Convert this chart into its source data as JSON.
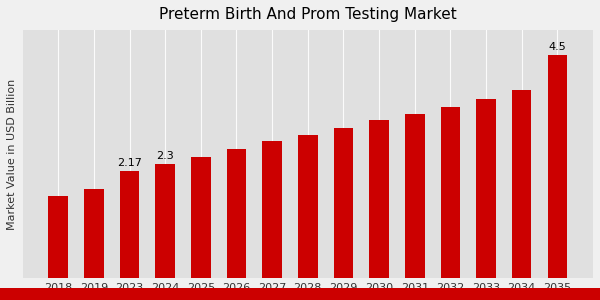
{
  "title": "Preterm Birth And Prom Testing Market",
  "ylabel": "Market Value in USD Billion",
  "categories": [
    "2018",
    "2019",
    "2023",
    "2024",
    "2025",
    "2026",
    "2027",
    "2028",
    "2029",
    "2030",
    "2031",
    "2032",
    "2033",
    "2034",
    "2035"
  ],
  "values": [
    1.65,
    1.8,
    2.17,
    2.3,
    2.44,
    2.6,
    2.76,
    2.88,
    3.02,
    3.18,
    3.3,
    3.45,
    3.62,
    3.8,
    4.5
  ],
  "bar_color": "#cc0000",
  "annotated_bars": {
    "2023": "2.17",
    "2024": "2.3",
    "2035": "4.5"
  },
  "background_top": "#f0f0f0",
  "background_bottom": "#d0d0d0",
  "plot_bg_color": "#e8e8e8",
  "title_fontsize": 11,
  "label_fontsize": 8,
  "annot_fontsize": 8,
  "ylim": [
    0,
    5.0
  ],
  "grid_color": "#c8c8c8",
  "bottom_bar_color": "#cc0000",
  "bottom_bar_height": 0.04
}
